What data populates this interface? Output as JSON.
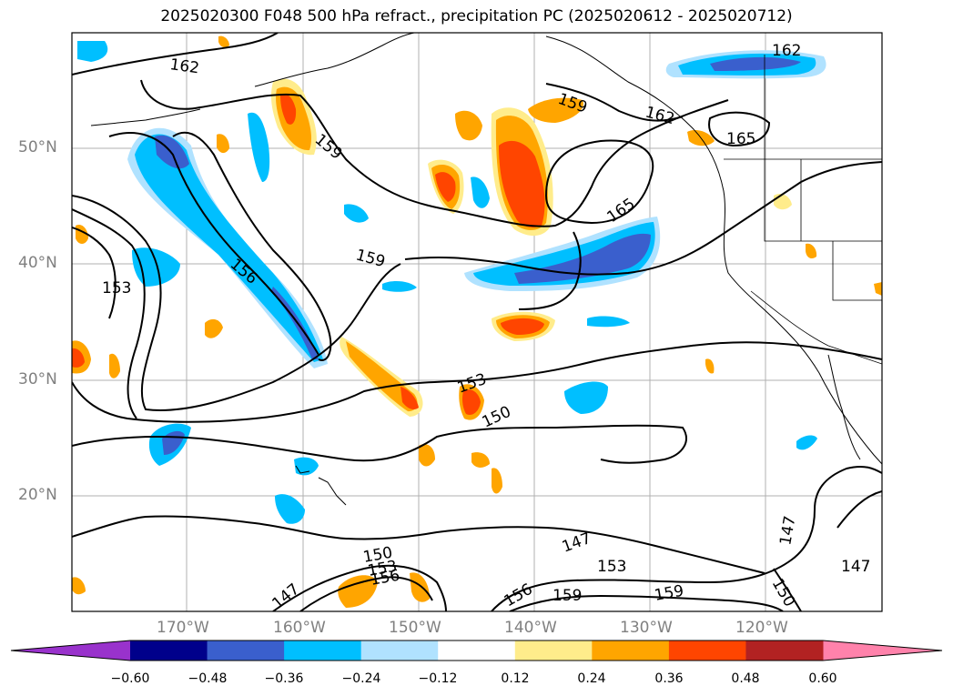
{
  "title": "2025020300 F048 500 hPa refract., precipitation PC (2025020612 - 2025020712)",
  "lat_labels": [
    "50°N",
    "40°N",
    "30°N",
    "20°N"
  ],
  "lon_labels": [
    "170°W",
    "160°W",
    "150°W",
    "140°W",
    "130°W",
    "120°W"
  ],
  "contour_labels": [
    "162",
    "162",
    "159",
    "159",
    "162",
    "165",
    "165",
    "159",
    "156",
    "153",
    "153",
    "150",
    "147",
    "153",
    "159",
    "159",
    "156",
    "150",
    "153",
    "156",
    "147",
    "147",
    "150",
    "147"
  ],
  "colorbar": {
    "ticks": [
      "−0.60",
      "−0.48",
      "−0.36",
      "−0.24",
      "−0.12",
      "0.12",
      "0.24",
      "0.36",
      "0.48",
      "0.60"
    ],
    "colors": [
      "#9932cc",
      "#00008b",
      "#3a5fcd",
      "#00bfff",
      "#b0e2ff",
      "#ffffff",
      "#ffec8b",
      "#ffa500",
      "#ff4500",
      "#b22222",
      "#ff82ab"
    ]
  },
  "colors": {
    "neg_strong": "#3a5fcd",
    "neg_mid": "#00bfff",
    "neg_weak": "#b0e2ff",
    "pos_weak": "#ffec8b",
    "pos_mid": "#ffa500",
    "pos_strong": "#ff4500"
  }
}
